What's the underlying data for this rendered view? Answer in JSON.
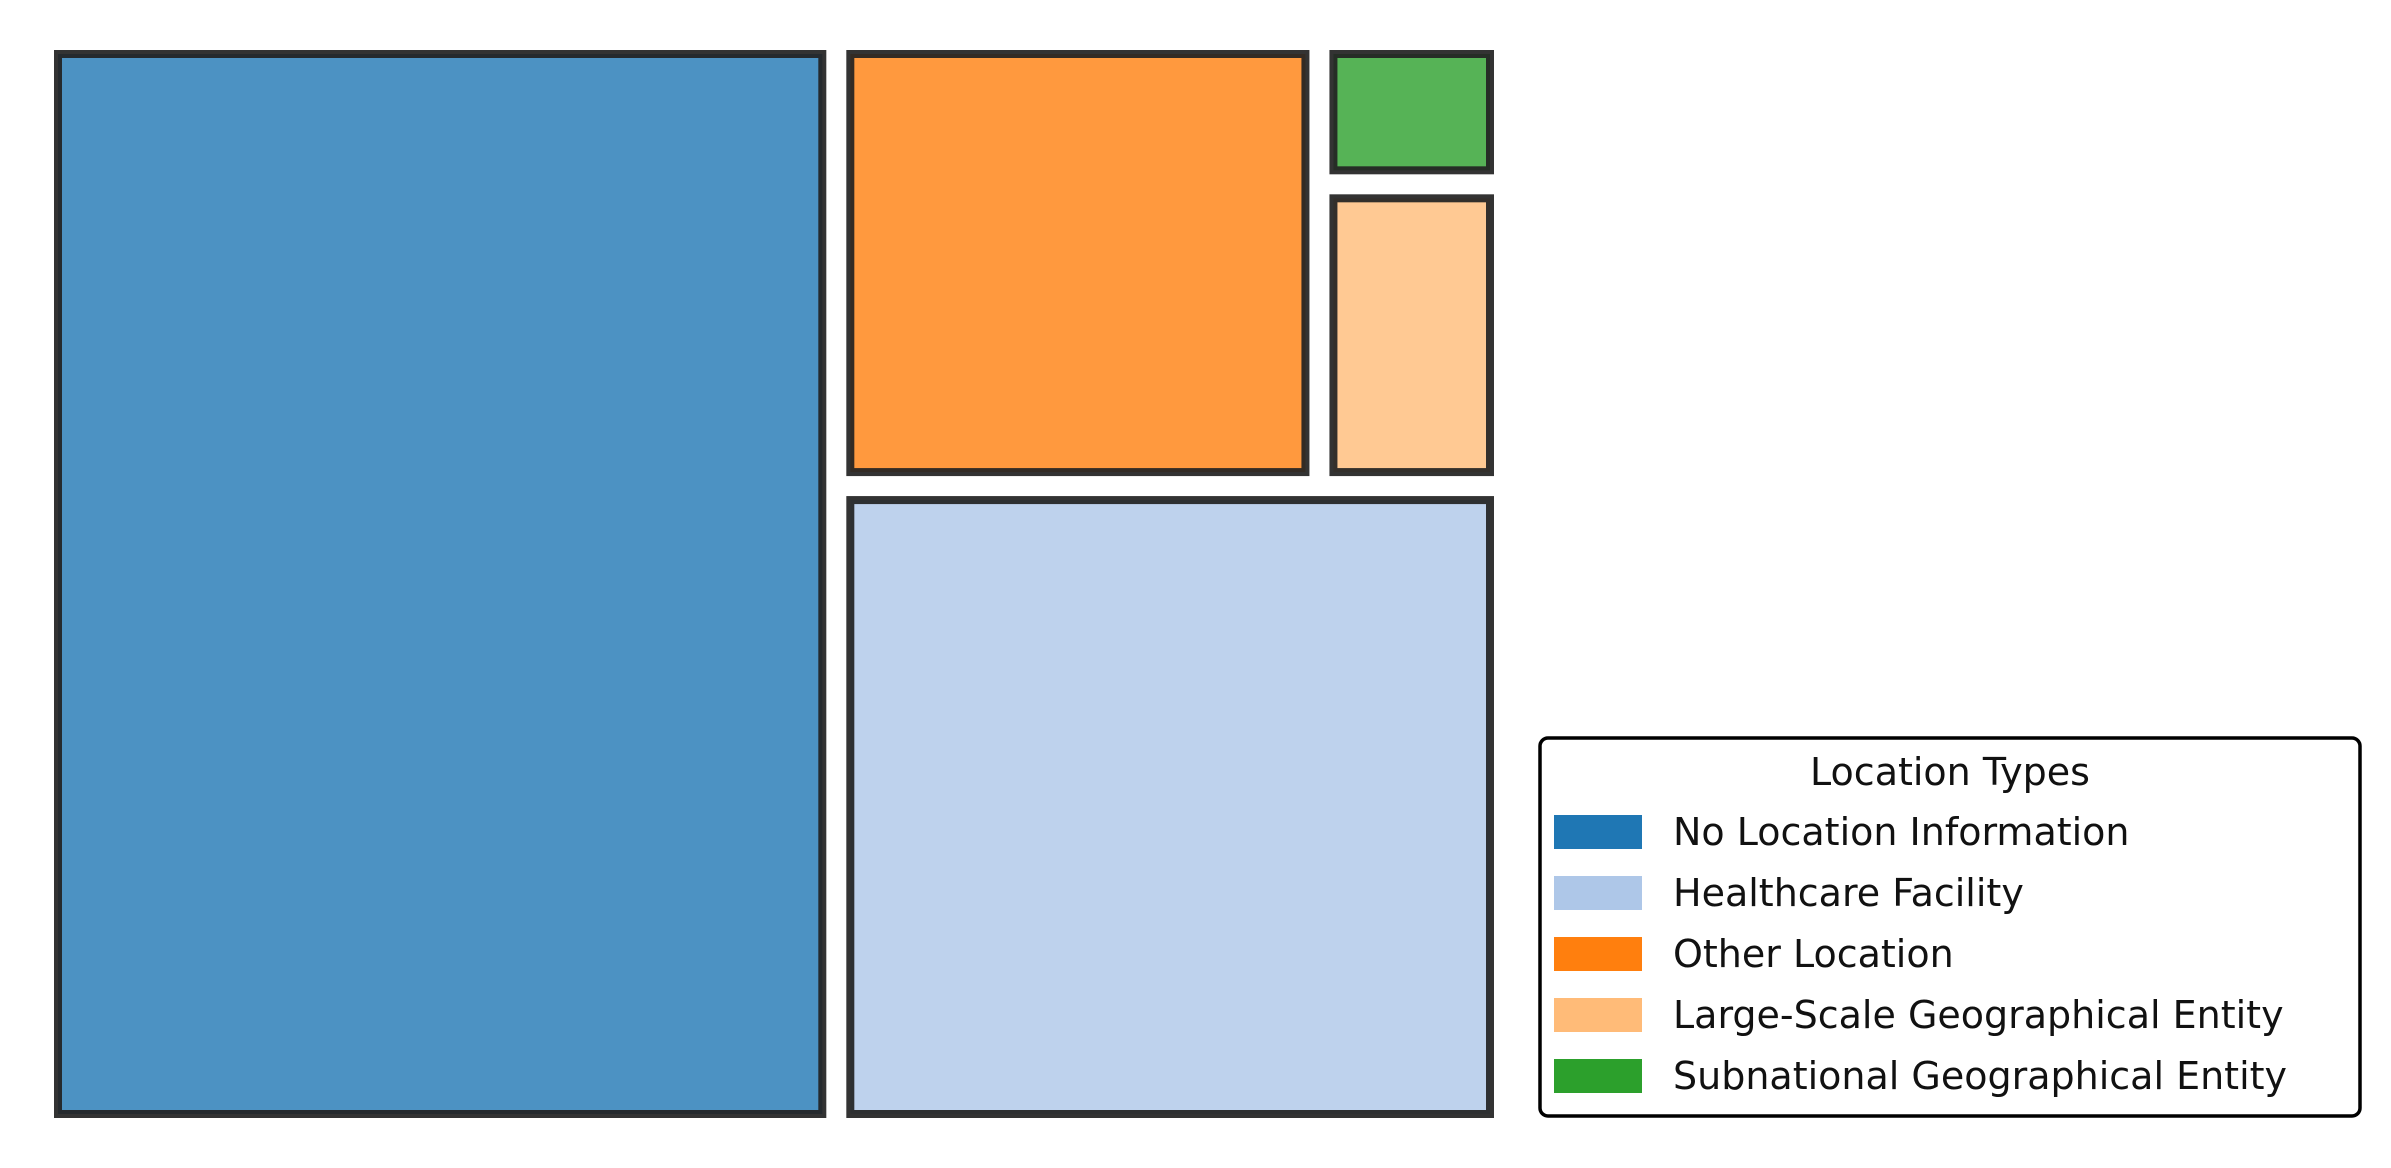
{
  "chart_data": {
    "type": "treemap",
    "title": "",
    "legend": {
      "title": "Location Types",
      "placement": "bottom-right",
      "entries": [
        {
          "label": "No Location Information",
          "color": "#1f77b4"
        },
        {
          "label": "Healthcare Facility",
          "color": "#aec7e8"
        },
        {
          "label": "Other Location",
          "color": "#ff7f0e"
        },
        {
          "label": "Large-Scale Geographical Entity",
          "color": "#ffbb78"
        },
        {
          "label": "Subnational Geographical Entity",
          "color": "#2ca02c"
        }
      ]
    },
    "tiles": [
      {
        "label": "No Location Information",
        "value": 356,
        "color": "#1f77b4"
      },
      {
        "label": "Healthcare Facility",
        "value": 177,
        "color": "#aec7e8"
      },
      {
        "label": "Other Location",
        "value": 89,
        "color": "#ff7f0e"
      },
      {
        "label": "Large-Scale Geographical Entity",
        "value": 23,
        "color": "#ffbb78"
      },
      {
        "label": "Subnational Geographical Entity",
        "value": 11,
        "color": "#2ca02c"
      }
    ]
  }
}
